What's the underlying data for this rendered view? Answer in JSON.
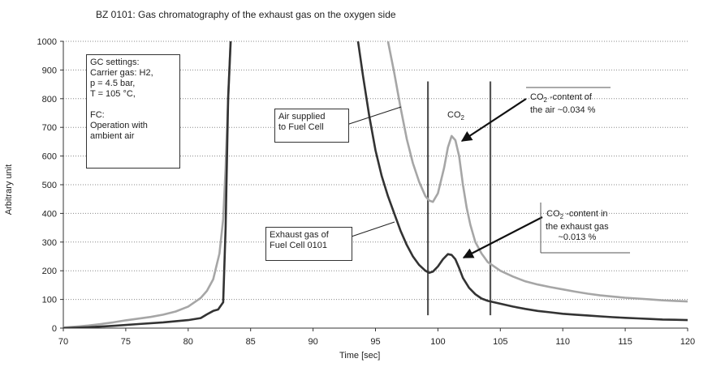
{
  "chart_data": {
    "type": "line",
    "title": "BZ 0101: Gas chromatography of the exhaust gas on the oxygen side",
    "xlabel": "Time [sec]",
    "ylabel": "Arbitrary unit",
    "xlim": [
      70,
      120
    ],
    "ylim": [
      0,
      1000
    ],
    "xticks": [
      70,
      75,
      80,
      85,
      90,
      95,
      100,
      105,
      110,
      115,
      120
    ],
    "yticks": [
      0,
      100,
      200,
      300,
      400,
      500,
      600,
      700,
      800,
      900,
      1000
    ],
    "grid": "horizontal dotted",
    "series": [
      {
        "color": "#a6a6a6",
        "x": [
          70,
          71,
          72,
          73,
          74,
          75,
          76,
          77,
          78,
          79,
          80,
          81,
          81.5,
          82,
          82.5,
          82.8,
          83,
          83.2,
          83.4,
          96,
          96.5,
          97,
          97.5,
          98,
          98.5,
          99,
          99.3,
          99.6,
          100,
          100.5,
          100.8,
          101.1,
          101.4,
          101.7,
          102,
          102.3,
          102.6,
          103,
          103.5,
          104,
          105,
          106,
          107,
          108,
          109,
          110,
          111,
          112,
          113,
          114,
          115,
          116,
          117,
          118,
          119,
          120
        ],
        "y": [
          2,
          5,
          9,
          14,
          20,
          27,
          33,
          39,
          47,
          58,
          75,
          105,
          130,
          170,
          260,
          380,
          560,
          800,
          1000,
          1000,
          890,
          770,
          660,
          575,
          510,
          460,
          445,
          440,
          470,
          560,
          630,
          670,
          655,
          600,
          500,
          420,
          360,
          300,
          260,
          230,
          200,
          180,
          163,
          152,
          143,
          135,
          127,
          120,
          114,
          110,
          106,
          103,
          100,
          97,
          95,
          93
        ]
      },
      {
        "color": "#333333",
        "x": [
          70,
          72,
          74,
          76,
          78,
          80,
          81,
          81.5,
          82,
          82.4,
          82.8,
          83,
          83.2,
          83.4,
          93.6,
          94,
          94.5,
          95,
          95.5,
          96,
          96.5,
          97,
          97.5,
          98,
          98.5,
          99,
          99.3,
          99.6,
          100,
          100.4,
          100.8,
          101.1,
          101.4,
          101.7,
          102,
          102.5,
          103,
          103.5,
          104,
          105,
          106,
          107,
          108,
          109,
          110,
          111,
          112,
          113,
          114,
          115,
          116,
          117,
          118,
          119,
          120
        ],
        "y": [
          0,
          3,
          8,
          14,
          20,
          28,
          35,
          48,
          60,
          65,
          90,
          350,
          800,
          1000,
          1000,
          880,
          740,
          620,
          530,
          460,
          400,
          340,
          290,
          250,
          220,
          200,
          193,
          197,
          215,
          240,
          258,
          255,
          240,
          210,
          175,
          140,
          118,
          103,
          95,
          85,
          75,
          67,
          60,
          55,
          50,
          47,
          44,
          41,
          38,
          36,
          34,
          32,
          30,
          29,
          28
        ]
      }
    ],
    "vertical_lines": [
      99.2,
      104.2
    ],
    "annotations": {
      "gc_box": [
        "GC settings:",
        "Carrier gas: H2,",
        "p = 4.5 bar,",
        "T = 105 °C,",
        "",
        "FC:",
        "Operation with",
        "ambient air"
      ],
      "air_box": [
        "Air supplied",
        "to Fuel Cell"
      ],
      "exhaust_box": [
        "Exhaust gas of",
        "Fuel Cell 0101"
      ],
      "co2_label": "CO",
      "co2_sub": "2",
      "co2_air": [
        "CO",
        "2",
        " -content of",
        "the air ~0.034 %"
      ],
      "co2_exhaust": [
        "CO",
        "2",
        " -content in",
        "the exhaust gas",
        "~0.013 %"
      ]
    }
  }
}
